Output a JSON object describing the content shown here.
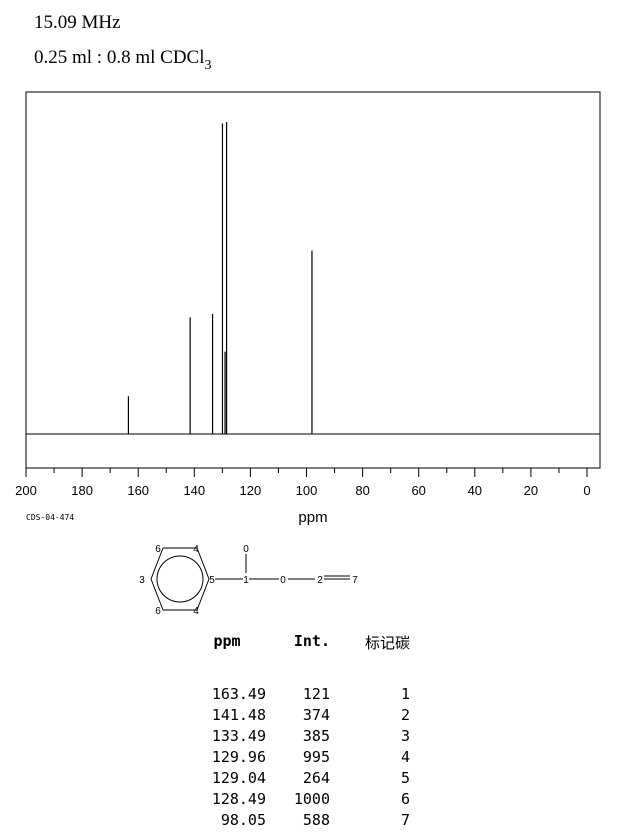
{
  "header": {
    "frequency": "15.09 MHz",
    "solvent_prefix": "0.25 ml : 0.8 ml CDCl",
    "solvent_subscript": "3"
  },
  "chart_data": {
    "type": "line",
    "xlabel": "ppm",
    "xlim": [
      200,
      0
    ],
    "x_reversed": true,
    "x_ticks": [
      "200",
      "180",
      "160",
      "140",
      "120",
      "100",
      "80",
      "60",
      "40",
      "20",
      "0"
    ],
    "peaks": [
      {
        "ppm": 163.49,
        "intensity": 121
      },
      {
        "ppm": 141.48,
        "intensity": 374
      },
      {
        "ppm": 133.49,
        "intensity": 385
      },
      {
        "ppm": 129.96,
        "intensity": 995
      },
      {
        "ppm": 129.04,
        "intensity": 264
      },
      {
        "ppm": 128.49,
        "intensity": 1000
      },
      {
        "ppm": 98.05,
        "intensity": 588
      }
    ],
    "code": "CDS-04-474"
  },
  "molecule": {
    "atoms": [
      "6",
      "4",
      "3",
      "5",
      "6",
      "4",
      "1",
      "0",
      "0",
      "2",
      "7"
    ]
  },
  "table": {
    "headers": {
      "ppm": "ppm",
      "int": "Int.",
      "carbon": "标记碳"
    },
    "rows": [
      {
        "ppm": "163.49",
        "int": "121",
        "carbon": "1"
      },
      {
        "ppm": "141.48",
        "int": "374",
        "carbon": "2"
      },
      {
        "ppm": "133.49",
        "int": "385",
        "carbon": "3"
      },
      {
        "ppm": "129.96",
        "int": "995",
        "carbon": "4"
      },
      {
        "ppm": "129.04",
        "int": "264",
        "carbon": "5"
      },
      {
        "ppm": "128.49",
        "int": "1000",
        "carbon": "6"
      },
      {
        "ppm": "98.05",
        "int": "588",
        "carbon": "7"
      }
    ]
  }
}
